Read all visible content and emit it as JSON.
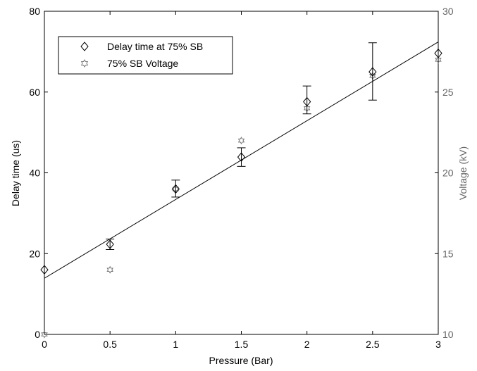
{
  "chart_data": {
    "type": "scatter",
    "xlabel": "Pressure (Bar)",
    "ylabel": "Delay time (us)",
    "y2label": "Voltage (kV)",
    "xlim": [
      0,
      3
    ],
    "ylim": [
      0,
      80
    ],
    "y2lim": [
      10,
      30
    ],
    "x_ticks": [
      "0",
      "0.5",
      "1",
      "1.5",
      "2",
      "2.5",
      "3"
    ],
    "y_ticks": [
      "0",
      "20",
      "40",
      "60",
      "80"
    ],
    "y2_ticks": [
      "10",
      "15",
      "20",
      "25",
      "30"
    ],
    "grid": false,
    "legend_position": "top-left",
    "series": [
      {
        "name": "Delay time at 75% SB",
        "axis": "left",
        "marker": "diamond",
        "x": [
          0,
          0.5,
          1,
          1.5,
          2,
          2.5,
          3
        ],
        "y": [
          16,
          22.3,
          36,
          43.9,
          57.6,
          65,
          69.6
        ],
        "err_low": [
          null,
          1.3,
          2.0,
          2.3,
          3.0,
          7.0,
          null
        ],
        "err_high": [
          null,
          1.3,
          2.2,
          2.3,
          3.9,
          7.2,
          null
        ]
      },
      {
        "name": "75% SB Voltage",
        "axis": "right",
        "marker": "hexagram",
        "x": [
          0,
          0.5,
          1,
          1.5,
          2,
          2.5,
          3
        ],
        "y": [
          10,
          14,
          19,
          22,
          24,
          26,
          27
        ]
      },
      {
        "name": "",
        "axis": "left",
        "type": "line",
        "x": [
          0,
          3
        ],
        "y": [
          13.9,
          72.4
        ]
      }
    ]
  }
}
